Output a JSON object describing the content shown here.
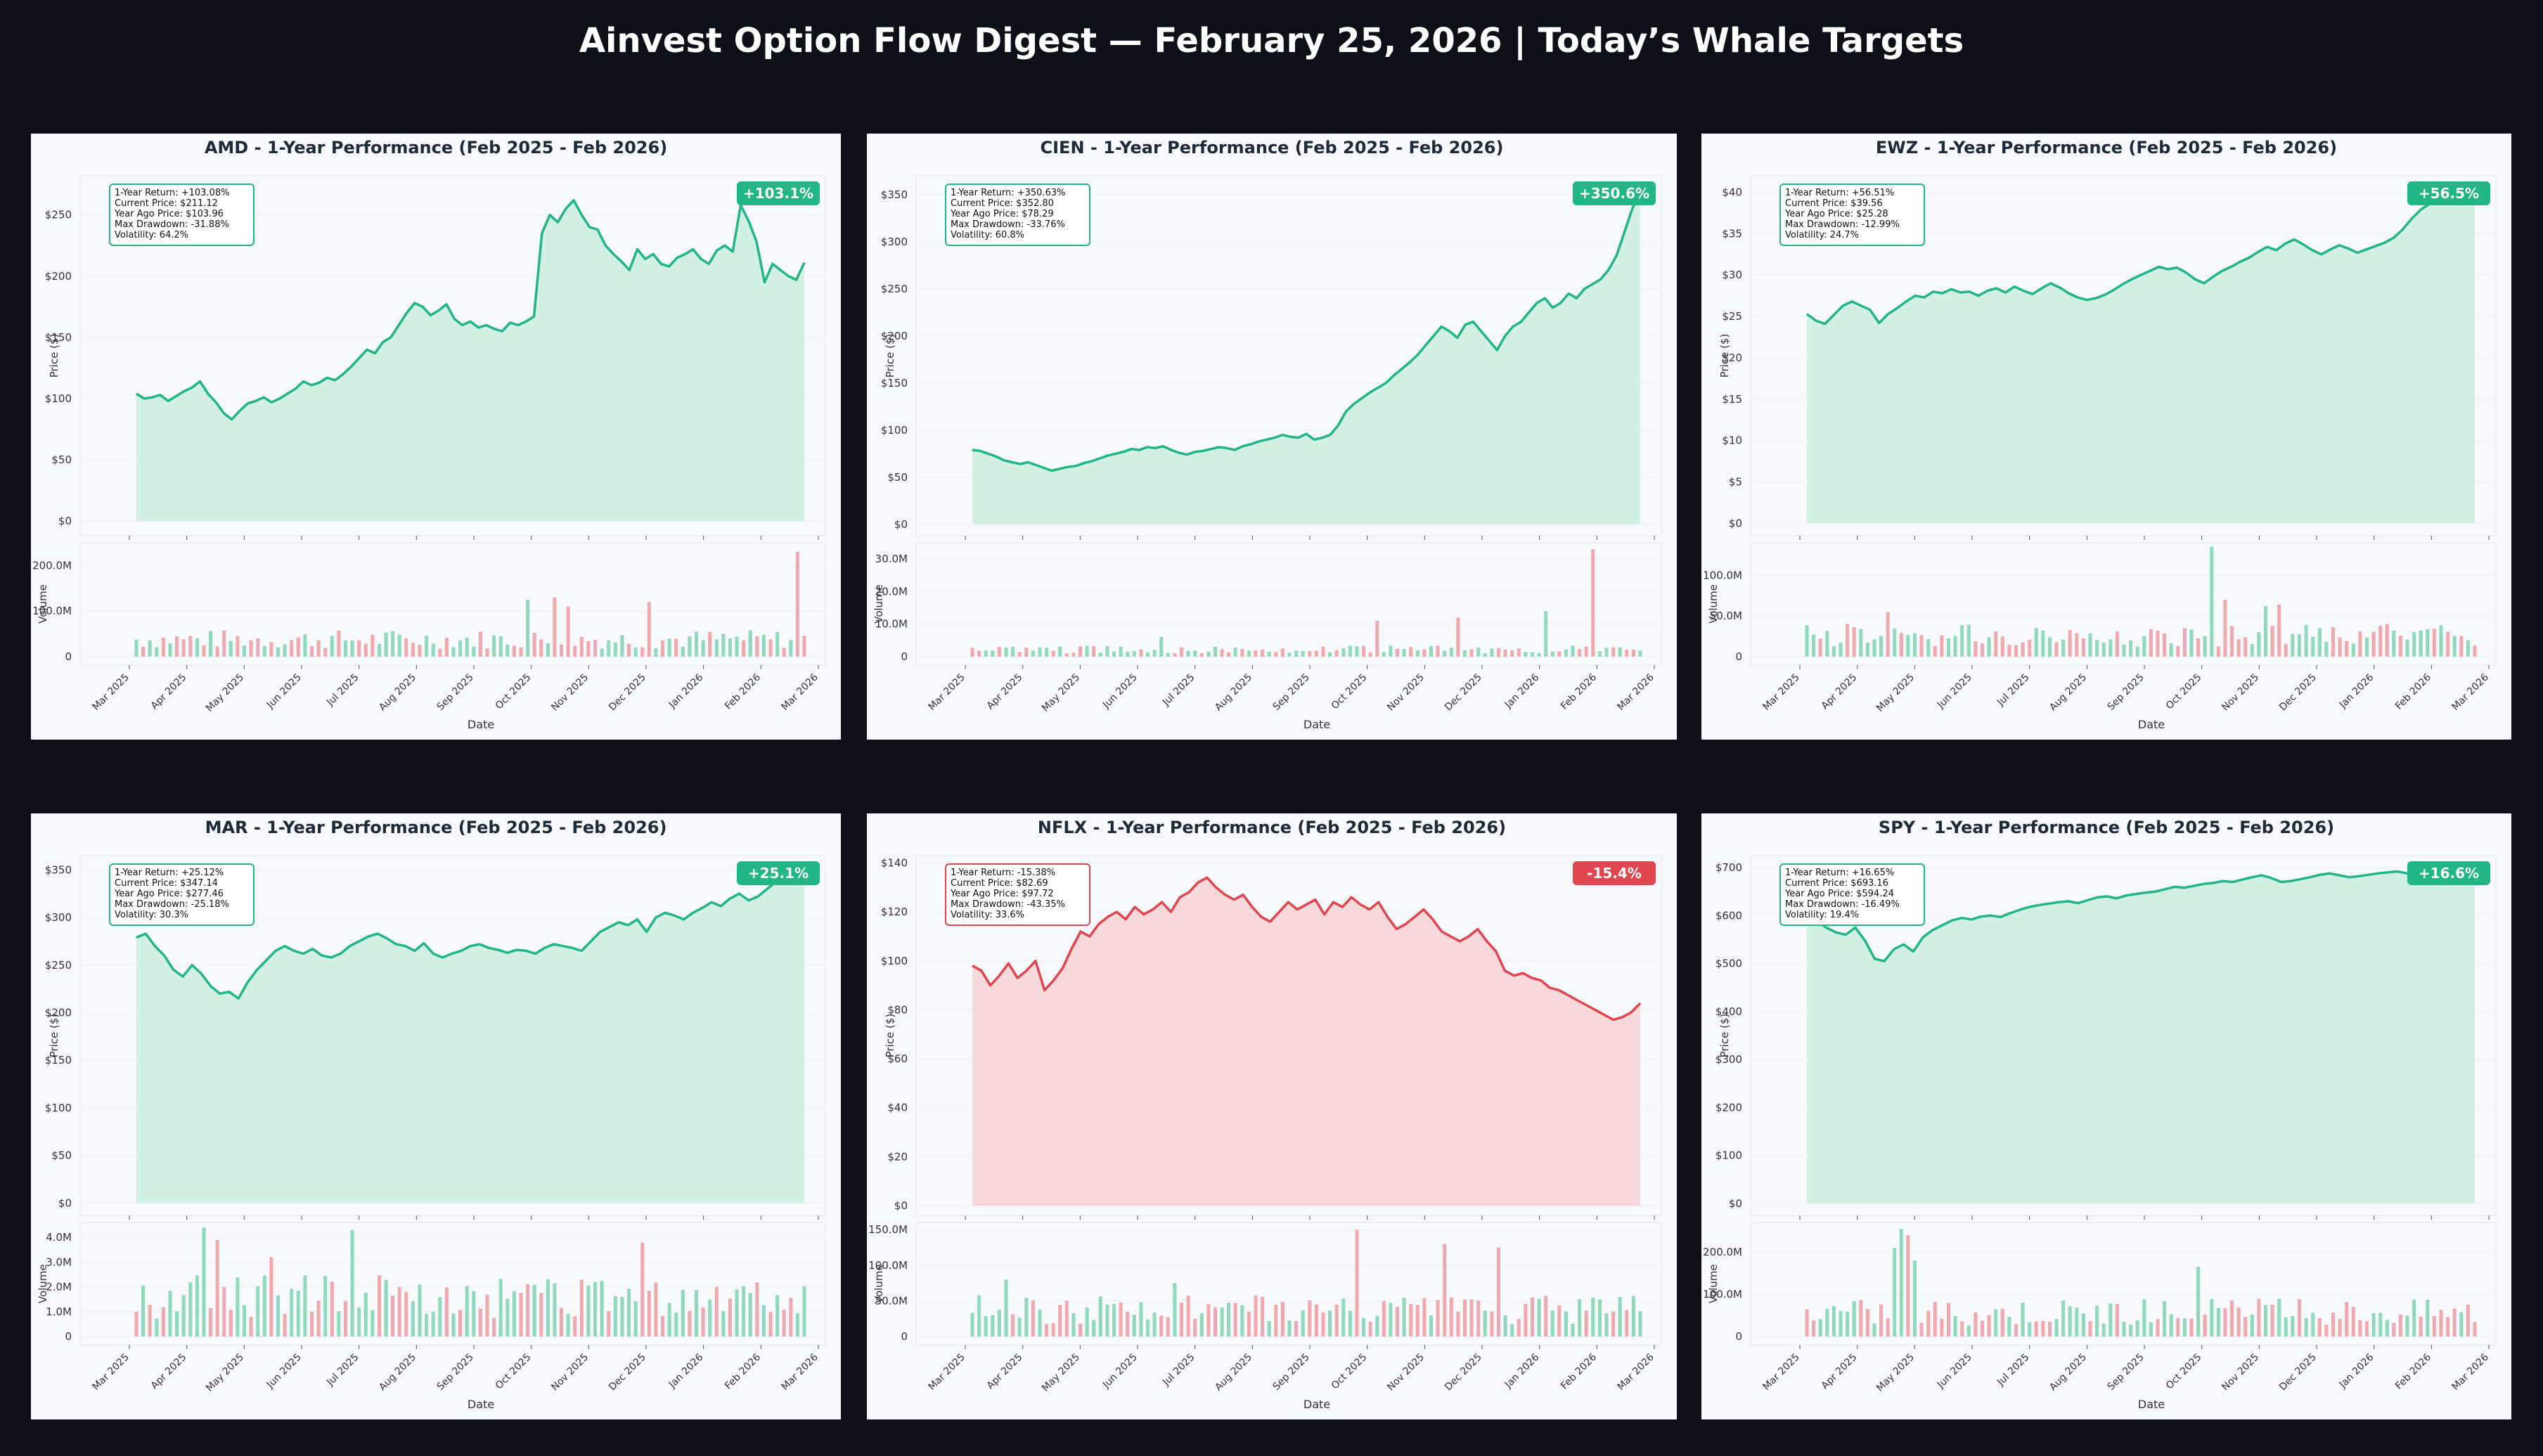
{
  "page_title": "Ainvest Option Flow Digest — February 25, 2026 | Today’s Whale Targets",
  "colors": {
    "background": "#0d1117",
    "panel": "#f7f9fc",
    "up": "#22b585",
    "up_fill": "#d3f0e4",
    "down": "#e0464f",
    "down_fill": "#f7d9db",
    "vol_up": "#7dd3b1",
    "vol_down": "#f09aa0"
  },
  "chart_data": [
    {
      "type": "line",
      "ticker": "AMD",
      "title": "AMD - 1-Year Performance (Feb 2025 - Feb 2026)",
      "badge": "+103.1%",
      "direction": "up",
      "stats": [
        "1-Year Return: +103.08%",
        "Current Price: $211.12",
        "Year Ago Price: $103.96",
        "Max Drawdown: -31.88%",
        "Volatility: 64.2%"
      ],
      "ylabel": "Price ($)",
      "ylim": [
        -12,
        282
      ],
      "yticks": [
        0,
        50,
        100,
        150,
        200,
        250
      ],
      "yticklabels": [
        "$0",
        "$50",
        "$100",
        "$150",
        "$200",
        "$250"
      ],
      "prices": [
        104,
        100,
        101,
        103,
        98,
        102,
        106,
        109,
        114,
        104,
        97,
        88,
        83,
        90,
        96,
        98,
        101,
        97,
        100,
        104,
        108,
        114,
        111,
        113,
        117,
        115,
        120,
        126,
        133,
        140,
        137,
        146,
        150,
        160,
        170,
        178,
        175,
        168,
        172,
        177,
        165,
        160,
        163,
        158,
        160,
        157,
        155,
        162,
        160,
        163,
        167,
        235,
        250,
        244,
        255,
        262,
        250,
        240,
        238,
        225,
        218,
        212,
        205,
        222,
        214,
        218,
        210,
        208,
        215,
        218,
        222,
        214,
        210,
        221,
        225,
        220,
        258,
        245,
        228,
        195,
        210,
        205,
        200,
        197,
        211
      ],
      "vol_label": "Volume",
      "vol_ylim": [
        0,
        250
      ],
      "vol_ticks": [
        0,
        100,
        200
      ],
      "vol_ticklabels": [
        "0",
        "100.0M",
        "200.0M"
      ],
      "vol_base": 38,
      "vol_spikes": [
        [
          98,
          230
        ],
        [
          58,
          125
        ],
        [
          62,
          130
        ],
        [
          64,
          110
        ],
        [
          76,
          120
        ]
      ]
    },
    {
      "type": "line",
      "ticker": "CIEN",
      "title": "CIEN - 1-Year Performance (Feb 2025 - Feb 2026)",
      "badge": "+350.6%",
      "direction": "up",
      "stats": [
        "1-Year Return: +350.63%",
        "Current Price: $352.80",
        "Year Ago Price: $78.29",
        "Max Drawdown: -33.76%",
        "Volatility: 60.8%"
      ],
      "ylabel": "Price ($)",
      "ylim": [
        -12,
        370
      ],
      "yticks": [
        0,
        50,
        100,
        150,
        200,
        250,
        300,
        350
      ],
      "yticklabels": [
        "$0",
        "$50",
        "$100",
        "$150",
        "$200",
        "$250",
        "$300",
        "$350"
      ],
      "prices": [
        79,
        78,
        75,
        72,
        68,
        66,
        64,
        66,
        63,
        60,
        57,
        59,
        61,
        62,
        65,
        67,
        70,
        73,
        75,
        77,
        80,
        79,
        82,
        81,
        83,
        79,
        76,
        74,
        77,
        78,
        80,
        82,
        81,
        79,
        83,
        85,
        88,
        90,
        92,
        95,
        93,
        92,
        96,
        90,
        92,
        95,
        105,
        120,
        128,
        134,
        140,
        145,
        150,
        158,
        165,
        172,
        180,
        190,
        200,
        210,
        205,
        198,
        212,
        215,
        205,
        195,
        185,
        200,
        210,
        215,
        225,
        235,
        240,
        230,
        235,
        245,
        240,
        250,
        255,
        260,
        270,
        285,
        310,
        335,
        352
      ],
      "vol_label": "Volume",
      "vol_ylim": [
        0,
        35
      ],
      "vol_ticks": [
        0,
        10,
        20,
        30
      ],
      "vol_ticklabels": [
        "0",
        "10.0M",
        "20.0M",
        "30.0M"
      ],
      "vol_base": 2.2,
      "vol_spikes": [
        [
          92,
          33
        ],
        [
          85,
          14
        ],
        [
          72,
          12
        ],
        [
          60,
          11
        ],
        [
          28,
          6
        ]
      ]
    },
    {
      "type": "line",
      "ticker": "EWZ",
      "title": "EWZ - 1-Year Performance (Feb 2025 - Feb 2026)",
      "badge": "+56.5%",
      "direction": "up",
      "stats": [
        "1-Year Return: +56.51%",
        "Current Price: $39.56",
        "Year Ago Price: $25.28",
        "Max Drawdown: -12.99%",
        "Volatility: 24.7%"
      ],
      "ylabel": "Price ($)",
      "ylim": [
        -1.5,
        42
      ],
      "yticks": [
        0,
        5,
        10,
        15,
        20,
        25,
        30,
        35,
        40
      ],
      "yticklabels": [
        "$0",
        "$5",
        "$10",
        "$15",
        "$20",
        "$25",
        "$30",
        "$35",
        "$40"
      ],
      "prices": [
        25.3,
        24.5,
        24.1,
        25.2,
        26.3,
        26.8,
        26.3,
        25.8,
        24.2,
        25.3,
        26.0,
        26.8,
        27.5,
        27.3,
        28.0,
        27.8,
        28.3,
        27.9,
        28.0,
        27.5,
        28.1,
        28.4,
        27.9,
        28.6,
        28.1,
        27.7,
        28.4,
        29.0,
        28.5,
        27.8,
        27.3,
        27.0,
        27.2,
        27.6,
        28.2,
        28.9,
        29.5,
        30.0,
        30.5,
        31.0,
        30.7,
        30.9,
        30.3,
        29.5,
        29.0,
        29.8,
        30.5,
        31.0,
        31.6,
        32.1,
        32.8,
        33.4,
        33.0,
        33.8,
        34.3,
        33.7,
        33.0,
        32.5,
        33.1,
        33.6,
        33.2,
        32.7,
        33.1,
        33.5,
        33.9,
        34.5,
        35.5,
        36.8,
        37.9,
        38.6,
        39.2,
        38.8,
        39.6,
        39.4,
        39.56
      ],
      "vol_label": "Volume",
      "vol_ylim": [
        0,
        140
      ],
      "vol_ticks": [
        0,
        50,
        100
      ],
      "vol_ticklabels": [
        "0",
        "50.0M",
        "100.0M"
      ],
      "vol_base": 26,
      "vol_spikes": [
        [
          60,
          135
        ],
        [
          62,
          70
        ],
        [
          68,
          62
        ],
        [
          70,
          64
        ],
        [
          12,
          55
        ]
      ]
    },
    {
      "type": "line",
      "ticker": "MAR",
      "title": "MAR - 1-Year Performance (Feb 2025 - Feb 2026)",
      "badge": "+25.1%",
      "direction": "up",
      "stats": [
        "1-Year Return: +25.12%",
        "Current Price: $347.14",
        "Year Ago Price: $277.46",
        "Max Drawdown: -25.18%",
        "Volatility: 30.3%"
      ],
      "ylabel": "Price ($)",
      "ylim": [
        -13,
        365
      ],
      "yticks": [
        0,
        50,
        100,
        150,
        200,
        250,
        300,
        350
      ],
      "yticklabels": [
        "$0",
        "$50",
        "$100",
        "$150",
        "$200",
        "$250",
        "$300",
        "$350"
      ],
      "prices": [
        279,
        283,
        270,
        260,
        245,
        238,
        250,
        241,
        228,
        220,
        222,
        215,
        232,
        245,
        255,
        265,
        270,
        265,
        262,
        267,
        260,
        258,
        262,
        270,
        275,
        280,
        283,
        278,
        272,
        270,
        265,
        273,
        262,
        258,
        262,
        265,
        270,
        272,
        268,
        266,
        263,
        266,
        265,
        262,
        268,
        272,
        270,
        268,
        265,
        275,
        285,
        290,
        295,
        292,
        298,
        285,
        300,
        305,
        302,
        298,
        305,
        310,
        316,
        312,
        320,
        325,
        318,
        322,
        330,
        338,
        345,
        358,
        347
      ],
      "vol_label": "Volume",
      "vol_ylim": [
        0,
        4.6
      ],
      "vol_ticks": [
        0,
        1,
        2,
        3,
        4
      ],
      "vol_ticklabels": [
        "0",
        "1.0M",
        "2.0M",
        "3.0M",
        "4.0M"
      ],
      "vol_base": 1.6,
      "vol_spikes": [
        [
          10,
          4.4
        ],
        [
          12,
          3.9
        ],
        [
          32,
          4.3
        ],
        [
          75,
          3.8
        ],
        [
          20,
          3.2
        ]
      ]
    },
    {
      "type": "line",
      "ticker": "NFLX",
      "title": "NFLX - 1-Year Performance (Feb 2025 - Feb 2026)",
      "badge": "-15.4%",
      "direction": "down",
      "stats": [
        "1-Year Return: -15.38%",
        "Current Price: $82.69",
        "Year Ago Price: $97.72",
        "Max Drawdown: -43.35%",
        "Volatility: 33.6%"
      ],
      "ylabel": "Price ($)",
      "ylim": [
        -4,
        143
      ],
      "yticks": [
        0,
        20,
        40,
        60,
        80,
        100,
        120,
        140
      ],
      "yticklabels": [
        "$0",
        "$20",
        "$40",
        "$60",
        "$80",
        "$100",
        "$120",
        "$140"
      ],
      "prices": [
        98,
        96,
        90,
        94,
        99,
        93,
        96,
        100,
        88,
        92,
        97,
        105,
        112,
        110,
        115,
        118,
        120,
        117,
        122,
        119,
        121,
        124,
        120,
        126,
        128,
        132,
        134,
        130,
        127,
        125,
        127,
        122,
        118,
        116,
        120,
        124,
        121,
        123,
        125,
        119,
        124,
        122,
        126,
        123,
        121,
        124,
        118,
        113,
        115,
        118,
        121,
        117,
        112,
        110,
        108,
        110,
        113,
        108,
        104,
        96,
        94,
        95,
        93,
        92,
        89,
        88,
        86,
        84,
        82,
        80,
        78,
        76,
        77,
        79,
        82.7
      ],
      "vol_label": "Volume",
      "vol_ylim": [
        0,
        160
      ],
      "vol_ticks": [
        0,
        50,
        100,
        150
      ],
      "vol_ticklabels": [
        "0",
        "50.0M",
        "100.0M",
        "150.0M"
      ],
      "vol_base": 38,
      "vol_spikes": [
        [
          57,
          150
        ],
        [
          70,
          130
        ],
        [
          78,
          125
        ],
        [
          5,
          80
        ],
        [
          30,
          75
        ]
      ]
    },
    {
      "type": "line",
      "ticker": "SPY",
      "title": "SPY - 1-Year Performance (Feb 2025 - Feb 2026)",
      "badge": "+16.6%",
      "direction": "up",
      "stats": [
        "1-Year Return: +16.65%",
        "Current Price: $693.16",
        "Year Ago Price: $594.24",
        "Max Drawdown: -16.49%",
        "Volatility: 19.4%"
      ],
      "ylabel": "Price ($)",
      "ylim": [
        -25,
        725
      ],
      "yticks": [
        0,
        100,
        200,
        300,
        400,
        500,
        600,
        700
      ],
      "yticklabels": [
        "$0",
        "$100",
        "$200",
        "$300",
        "$400",
        "$500",
        "$600",
        "$700"
      ],
      "prices": [
        594,
        590,
        575,
        565,
        560,
        575,
        548,
        510,
        505,
        530,
        540,
        525,
        555,
        570,
        580,
        590,
        595,
        592,
        598,
        600,
        597,
        605,
        612,
        618,
        622,
        625,
        628,
        630,
        626,
        632,
        638,
        640,
        636,
        642,
        645,
        648,
        650,
        655,
        660,
        658,
        662,
        666,
        668,
        672,
        670,
        675,
        680,
        684,
        678,
        670,
        672,
        676,
        680,
        685,
        688,
        684,
        680,
        682,
        685,
        688,
        690,
        692,
        688,
        684,
        688,
        692,
        696,
        694,
        690,
        693
      ],
      "vol_label": "Volume",
      "vol_ylim": [
        0,
        270
      ],
      "vol_ticks": [
        0,
        100,
        200
      ],
      "vol_ticklabels": [
        "0",
        "100.0M",
        "200.0M"
      ],
      "vol_base": 58,
      "vol_spikes": [
        [
          14,
          255
        ],
        [
          15,
          240
        ],
        [
          13,
          210
        ],
        [
          16,
          180
        ],
        [
          58,
          165
        ]
      ]
    }
  ],
  "x_months": [
    "Mar 2025",
    "Apr 2025",
    "May 2025",
    "Jun 2025",
    "Jul 2025",
    "Aug 2025",
    "Sep 2025",
    "Oct 2025",
    "Nov 2025",
    "Dec 2025",
    "Jan 2026",
    "Feb 2026",
    "Mar 2026"
  ],
  "xlabel": "Date"
}
